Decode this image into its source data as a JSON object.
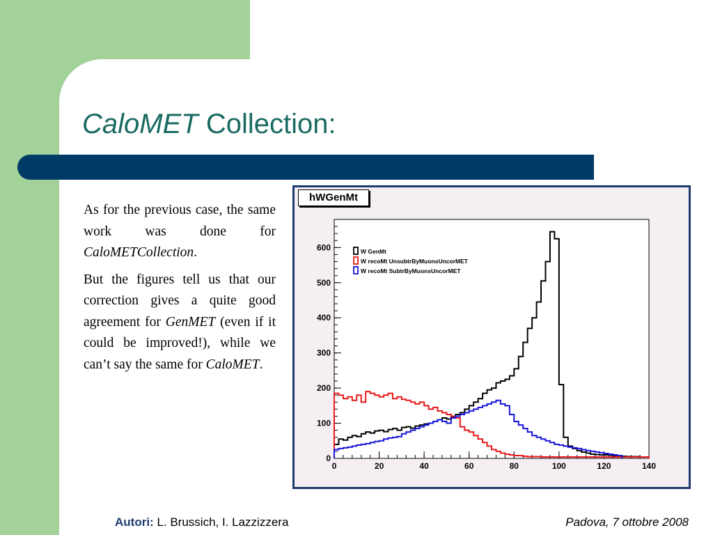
{
  "slide": {
    "title_italic": "CaloMET",
    "title_rest": " Collection:"
  },
  "body": {
    "p1_a": "As for the previous case, the same work was done for ",
    "p1_it": "CaloMETCollection",
    "p1_b": ".",
    "p2_a": "But the figures tell us that our correction gives a quite good agreement for ",
    "p2_it1": "GenMET",
    "p2_b": " (even if it could be improved!), while we can’t say the same for ",
    "p2_it2": "CaloMET",
    "p2_c": "."
  },
  "footer": {
    "authors_label": "Autori:",
    "authors": " L. Brussich, I. Lazzizzera",
    "place_date": "Padova, 7 ottobre 2008"
  },
  "chart_data": {
    "type": "line",
    "title": "hWGenMt",
    "xlim": [
      0,
      140
    ],
    "ylim": [
      0,
      680
    ],
    "x_ticks": [
      0,
      20,
      40,
      60,
      80,
      100,
      120,
      140
    ],
    "y_ticks": [
      0,
      100,
      200,
      300,
      400,
      500,
      600
    ],
    "bin_width": 2,
    "legend_position": "top-left",
    "colors": {
      "black": "#000000",
      "red": "#e8191b",
      "blue": "#1515d9"
    },
    "series": [
      {
        "name": "W GenMt",
        "color": "#000000",
        "values": [
          40,
          55,
          52,
          60,
          65,
          62,
          70,
          75,
          72,
          78,
          80,
          76,
          82,
          85,
          80,
          88,
          90,
          86,
          92,
          95,
          98,
          100,
          105,
          110,
          115,
          112,
          118,
          125,
          130,
          140,
          150,
          160,
          170,
          185,
          195,
          200,
          215,
          220,
          225,
          235,
          255,
          290,
          330,
          370,
          400,
          445,
          505,
          560,
          645,
          625,
          210,
          60,
          35,
          28,
          22,
          18,
          15,
          12,
          11,
          10,
          10,
          9,
          8,
          7,
          6,
          5,
          5,
          5,
          4,
          4
        ]
      },
      {
        "name": "W recoMt UnsubtrByMuonsUncorMET",
        "color": "#e8191b",
        "values": [
          185,
          180,
          170,
          175,
          165,
          180,
          160,
          190,
          185,
          180,
          175,
          180,
          185,
          170,
          175,
          168,
          165,
          160,
          155,
          160,
          150,
          140,
          145,
          135,
          130,
          125,
          120,
          115,
          90,
          80,
          75,
          65,
          55,
          45,
          35,
          25,
          20,
          15,
          12,
          10,
          8,
          8,
          6,
          5,
          5,
          5,
          4,
          4,
          4,
          4,
          4,
          4,
          4,
          4,
          4,
          4,
          4,
          4,
          4,
          4,
          4,
          4,
          4,
          4,
          4,
          4,
          4,
          4,
          4,
          4
        ]
      },
      {
        "name": "W recoMt SubtrByMuonsUncorMET",
        "color": "#1515d9",
        "values": [
          25,
          28,
          30,
          32,
          35,
          38,
          40,
          42,
          45,
          48,
          50,
          55,
          58,
          60,
          62,
          70,
          75,
          80,
          85,
          90,
          95,
          100,
          105,
          110,
          105,
          100,
          115,
          120,
          125,
          130,
          135,
          140,
          145,
          150,
          155,
          160,
          165,
          155,
          150,
          125,
          105,
          95,
          85,
          75,
          65,
          60,
          55,
          50,
          45,
          40,
          38,
          35,
          32,
          30,
          28,
          25,
          22,
          20,
          18,
          16,
          14,
          12,
          10,
          8
        ]
      }
    ]
  }
}
